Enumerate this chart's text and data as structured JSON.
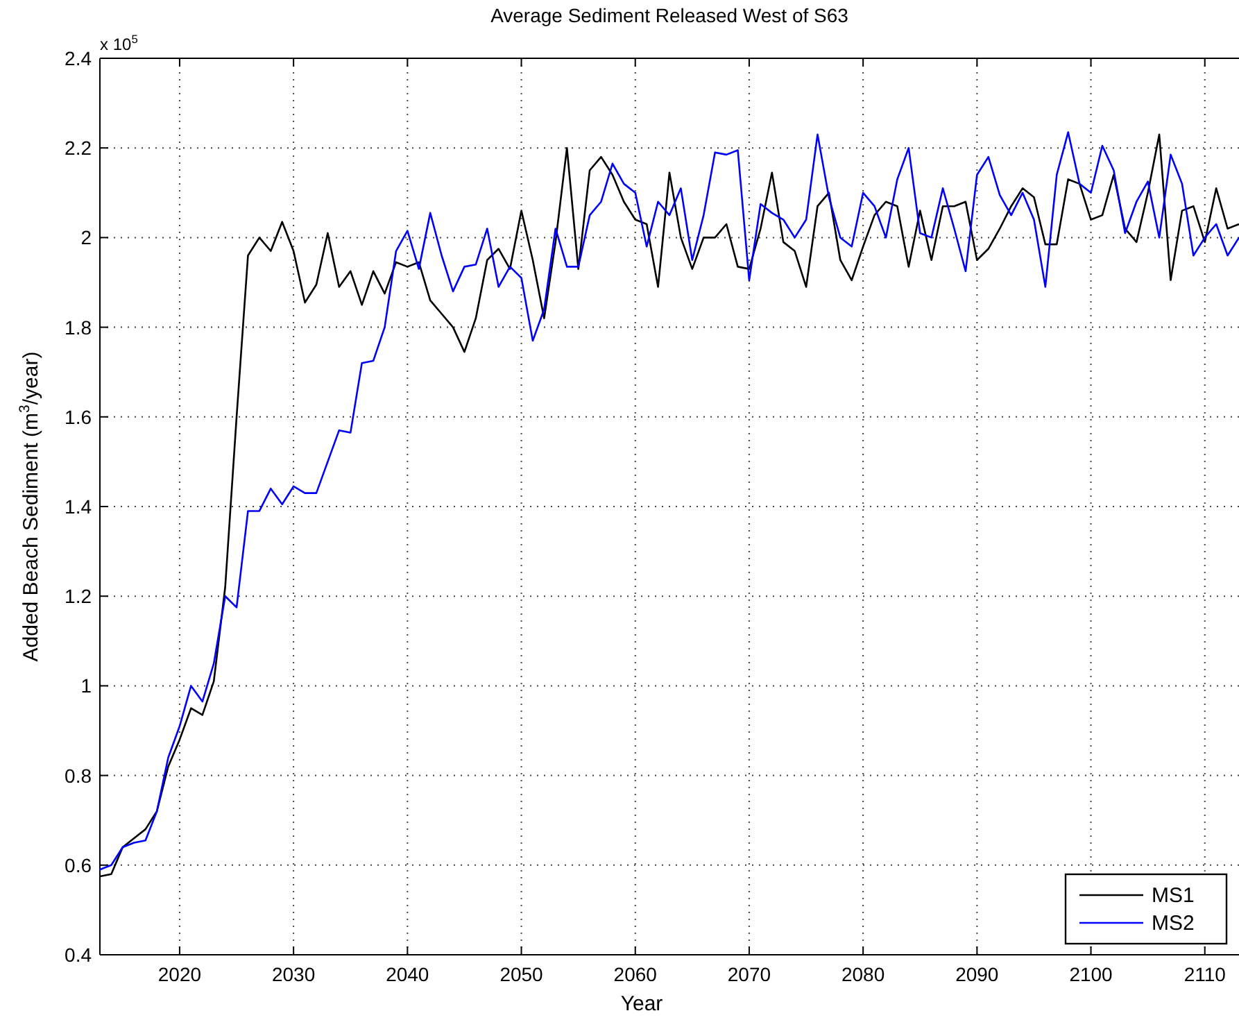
{
  "chart_data": {
    "type": "line",
    "title": "Average Sediment Released West of S63",
    "xlabel": "Year",
    "ylabel": "Added Beach Sediment (m$^{3}$/year)",
    "annotations": [
      "x 10$^{5}$"
    ],
    "xlim": [
      2013,
      2113
    ],
    "xticks": [
      2020,
      2030,
      2040,
      2050,
      2060,
      2070,
      2080,
      2090,
      2100,
      2110
    ],
    "ylim": [
      0.4,
      2.4
    ],
    "yticks": [
      0.4,
      0.6,
      0.8,
      1,
      1.2,
      1.4,
      1.6,
      1.8,
      2,
      2.2,
      2.4
    ],
    "grid": true,
    "legend": "bottom right",
    "line_style": "solid",
    "x": [
      2013,
      2014,
      2015,
      2016,
      2017,
      2018,
      2019,
      2020,
      2021,
      2022,
      2023,
      2024,
      2025,
      2026,
      2027,
      2028,
      2029,
      2030,
      2031,
      2032,
      2033,
      2034,
      2035,
      2036,
      2037,
      2038,
      2039,
      2040,
      2041,
      2042,
      2043,
      2044,
      2045,
      2046,
      2047,
      2048,
      2049,
      2050,
      2051,
      2052,
      2053,
      2054,
      2055,
      2056,
      2057,
      2058,
      2059,
      2060,
      2061,
      2062,
      2063,
      2064,
      2065,
      2066,
      2067,
      2068,
      2069,
      2070,
      2071,
      2072,
      2073,
      2074,
      2075,
      2076,
      2077,
      2078,
      2079,
      2080,
      2081,
      2082,
      2083,
      2084,
      2085,
      2086,
      2087,
      2088,
      2089,
      2090,
      2091,
      2092,
      2093,
      2094,
      2095,
      2096,
      2097,
      2098,
      2099,
      2100,
      2101,
      2102,
      2103,
      2104,
      2105,
      2106,
      2107,
      2108,
      2109,
      2110,
      2111,
      2112,
      2113
    ],
    "series": [
      {
        "name": "MS1",
        "color": "#000000",
        "values": [
          0.575,
          0.58,
          0.64,
          0.66,
          0.68,
          0.72,
          0.82,
          0.88,
          0.95,
          0.935,
          1.01,
          1.22,
          1.6,
          1.96,
          2.0,
          1.97,
          2.035,
          1.97,
          1.855,
          1.895,
          2.01,
          1.89,
          1.925,
          1.85,
          1.925,
          1.875,
          1.945,
          1.935,
          1.945,
          1.86,
          1.83,
          1.8,
          1.745,
          1.82,
          1.95,
          1.975,
          1.93,
          2.06,
          1.95,
          1.82,
          1.99,
          2.2,
          1.93,
          2.15,
          2.18,
          2.14,
          2.08,
          2.04,
          2.03,
          1.89,
          2.145,
          2.0,
          1.93,
          2.0,
          2.0,
          2.03,
          1.935,
          1.93,
          2.02,
          2.145,
          1.99,
          1.97,
          1.89,
          2.07,
          2.1,
          1.95,
          1.905,
          1.98,
          2.05,
          2.08,
          2.07,
          1.935,
          2.06,
          1.95,
          2.07,
          2.07,
          2.08,
          1.95,
          1.975,
          2.02,
          2.07,
          2.11,
          2.09,
          1.985,
          1.985,
          2.13,
          2.12,
          2.04,
          2.05,
          2.14,
          2.02,
          1.99,
          2.1,
          2.23,
          1.905,
          2.06,
          2.07,
          1.99,
          2.11,
          2.02,
          2.03
        ]
      },
      {
        "name": "MS2",
        "color": "#0000ff",
        "values": [
          0.59,
          0.6,
          0.64,
          0.65,
          0.655,
          0.72,
          0.84,
          0.91,
          1.0,
          0.965,
          1.05,
          1.2,
          1.175,
          1.39,
          1.39,
          1.44,
          1.405,
          1.445,
          1.43,
          1.43,
          1.5,
          1.57,
          1.565,
          1.72,
          1.725,
          1.8,
          1.97,
          2.015,
          1.93,
          2.055,
          1.96,
          1.88,
          1.935,
          1.94,
          2.02,
          1.89,
          1.935,
          1.91,
          1.77,
          1.84,
          2.02,
          1.935,
          1.935,
          2.05,
          2.08,
          2.165,
          2.12,
          2.1,
          1.98,
          2.08,
          2.05,
          2.11,
          1.95,
          2.05,
          2.19,
          2.185,
          2.195,
          1.905,
          2.075,
          2.055,
          2.04,
          2.0,
          2.04,
          2.23,
          2.09,
          2.0,
          1.98,
          2.1,
          2.07,
          2.0,
          2.13,
          2.2,
          2.01,
          2.0,
          2.11,
          2.02,
          1.925,
          2.14,
          2.18,
          2.095,
          2.05,
          2.1,
          2.04,
          1.89,
          2.14,
          2.235,
          2.12,
          2.1,
          2.205,
          2.15,
          2.01,
          2.08,
          2.125,
          2.0,
          2.185,
          2.12,
          1.96,
          2.0,
          2.03,
          1.96,
          2.0
        ]
      }
    ]
  }
}
